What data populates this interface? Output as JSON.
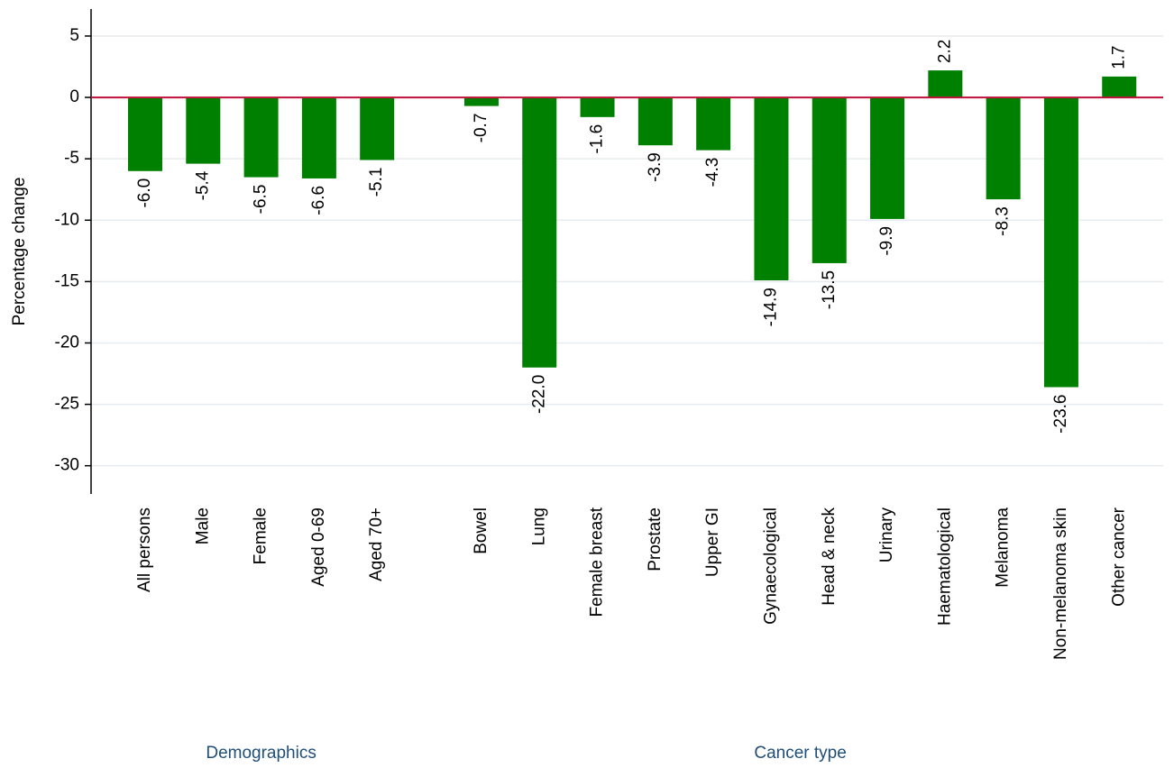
{
  "chart_data": {
    "type": "bar",
    "y_label": "Percentage change",
    "color": "#008000",
    "reference_line_color": "#c0103a",
    "ylim": [
      -32.3,
      7.2
    ],
    "yticks": [
      5,
      0,
      -5,
      -10,
      -15,
      -20,
      -25,
      -30
    ],
    "grid": true,
    "groups": [
      {
        "name": "Demographics",
        "categories": [
          "All persons",
          "Male",
          "Female",
          "Aged 0-69",
          "Aged 70+"
        ],
        "values": [
          -6.0,
          -5.4,
          -6.5,
          -6.6,
          -5.1
        ],
        "value_labels": [
          "-6.0",
          "-5.4",
          "-6.5",
          "-6.6",
          "-5.1"
        ]
      },
      {
        "name": "Cancer type",
        "categories": [
          "Bowel",
          "Lung",
          "Female breast",
          "Prostate",
          "Upper GI",
          "Gynaecological",
          "Head & neck",
          "Urinary",
          "Haematological",
          "Melanoma",
          "Non-melanoma skin",
          "Other cancer"
        ],
        "values": [
          -0.7,
          -22.0,
          -1.6,
          -3.9,
          -4.3,
          -14.9,
          -13.5,
          -9.9,
          2.2,
          -8.3,
          -23.6,
          1.7
        ],
        "value_labels": [
          "-0.7",
          "-22.0",
          "-1.6",
          "-3.9",
          "-4.3",
          "-14.9",
          "-13.5",
          "-9.9",
          "2.2",
          "-8.3",
          "-23.6",
          "1.7"
        ]
      }
    ]
  }
}
